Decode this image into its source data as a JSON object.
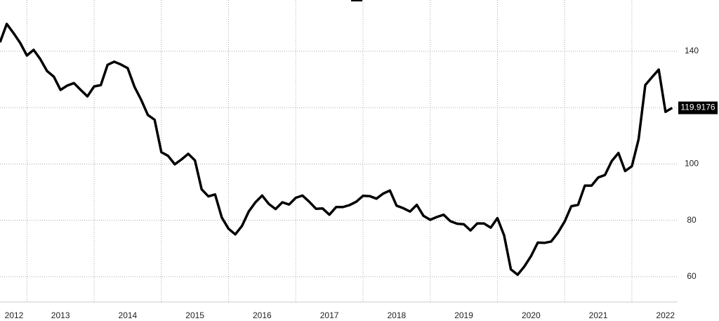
{
  "chart_data": {
    "type": "line",
    "x": [
      2012.6,
      2012.7,
      2012.8,
      2012.9,
      2013.0,
      2013.1,
      2013.2,
      2013.3,
      2013.4,
      2013.5,
      2013.6,
      2013.7,
      2013.8,
      2013.9,
      2014.0,
      2014.1,
      2014.2,
      2014.3,
      2014.4,
      2014.5,
      2014.6,
      2014.7,
      2014.8,
      2014.9,
      2015.0,
      2015.1,
      2015.2,
      2015.3,
      2015.4,
      2015.5,
      2015.6,
      2015.7,
      2015.8,
      2015.9,
      2016.0,
      2016.1,
      2016.2,
      2016.3,
      2016.4,
      2016.5,
      2016.6,
      2016.7,
      2016.8,
      2016.9,
      2017.0,
      2017.1,
      2017.2,
      2017.3,
      2017.4,
      2017.5,
      2017.6,
      2017.7,
      2017.8,
      2017.9,
      2018.0,
      2018.1,
      2018.2,
      2018.3,
      2018.4,
      2018.5,
      2018.6,
      2018.7,
      2018.8,
      2018.9,
      2019.0,
      2019.1,
      2019.2,
      2019.3,
      2019.4,
      2019.5,
      2019.6,
      2019.7,
      2019.8,
      2019.9,
      2020.0,
      2020.1,
      2020.2,
      2020.3,
      2020.4,
      2020.5,
      2020.6,
      2020.7,
      2020.8,
      2020.9,
      2021.0,
      2021.1,
      2021.2,
      2021.3,
      2021.4,
      2021.5,
      2021.6,
      2021.7,
      2021.8,
      2021.9,
      2022.0,
      2022.1,
      2022.2,
      2022.3,
      2022.4,
      2022.5,
      2022.6
    ],
    "series": [
      {
        "color": "#000000",
        "values": [
          143.2,
          149.7,
          146.5,
          143,
          138.5,
          140.5,
          137.2,
          133,
          131,
          126.3,
          127.8,
          128.7,
          126.3,
          124,
          127.5,
          128,
          135.2,
          136.3,
          135.3,
          134,
          127.4,
          122.8,
          117.4,
          115.7,
          104.2,
          102.9,
          99.9,
          101.6,
          103.6,
          101.3,
          91,
          88.5,
          89.2,
          81,
          77,
          75,
          78,
          83.1,
          86.4,
          88.8,
          85.8,
          84,
          86.4,
          85.6,
          88,
          88.8,
          86.6,
          84.1,
          84.2,
          82,
          84.7,
          84.7,
          85.4,
          86.6,
          88.7,
          88.6,
          87.7,
          89.5,
          90.6,
          85.2,
          84.3,
          83.1,
          85.5,
          81.6,
          80.2,
          81.2,
          82,
          79.7,
          78.8,
          78.6,
          76.4,
          78.9,
          78.9,
          77.4,
          80.8,
          74.6,
          62.6,
          60.7,
          63.6,
          67.3,
          72.1,
          72,
          72.5,
          75.6,
          79.6,
          85,
          85.5,
          92.3,
          92.3,
          95.2,
          96.1,
          101,
          103.9,
          97.5,
          99.2,
          108.8,
          128,
          130.8,
          133.5,
          118.5,
          119.9176
        ]
      }
    ],
    "xlim": [
      2012.6,
      2022.68
    ],
    "xticks": [
      2012,
      2013,
      2014,
      2015,
      2016,
      2017,
      2018,
      2019,
      2020,
      2021,
      2022
    ],
    "ylim": [
      51,
      158.2
    ],
    "yticks": [
      60,
      80,
      100,
      140
    ],
    "grid_lines": [
      60,
      80,
      100,
      120,
      140
    ],
    "grid": true
  }
}
